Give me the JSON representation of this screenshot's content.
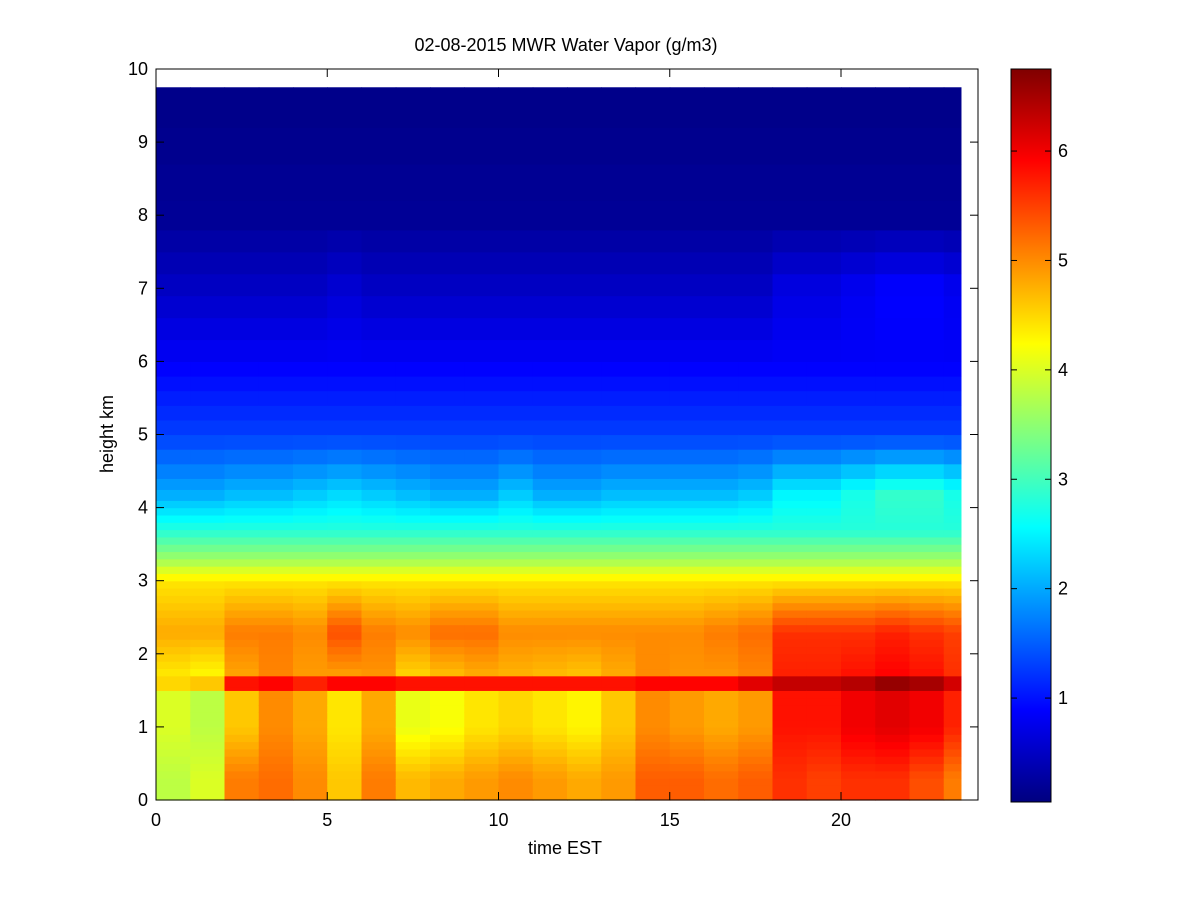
{
  "chart_data": {
    "type": "heatmap",
    "title": "02-08-2015 MWR Water Vapor (g/m3)",
    "xlabel": "time EST",
    "ylabel": "height km",
    "xlim": [
      0,
      24
    ],
    "ylim": [
      0,
      10
    ],
    "x_ticks": [
      0,
      5,
      10,
      15,
      20
    ],
    "y_ticks": [
      0,
      1,
      2,
      3,
      4,
      5,
      6,
      7,
      8,
      9,
      10
    ],
    "grid": false,
    "colormap": "jet",
    "colorbar": {
      "min": 0.05,
      "max": 6.75,
      "ticks": [
        1,
        2,
        3,
        4,
        5,
        6
      ]
    },
    "x": [
      0,
      1,
      2,
      3,
      4,
      5,
      6,
      7,
      8,
      9,
      10,
      11,
      12,
      13,
      14,
      15,
      16,
      17,
      18,
      19,
      20,
      21,
      22,
      23
    ],
    "x_end": 23.5,
    "y_top": 9.75,
    "height_levels": [
      0,
      0.1,
      0.2,
      0.3,
      0.4,
      0.5,
      0.6,
      0.7,
      0.8,
      0.9,
      1.0,
      1.1,
      1.2,
      1.3,
      1.4,
      1.5,
      1.55,
      1.65,
      1.7,
      1.8,
      1.9,
      2.0,
      2.1,
      2.2,
      2.3,
      2.4,
      2.5,
      2.6,
      2.7,
      2.8,
      2.9,
      3.0,
      3.1,
      3.2,
      3.3,
      3.4,
      3.5,
      3.6,
      3.7,
      3.8,
      3.9,
      4.0,
      4.1,
      4.25,
      4.4,
      4.6,
      4.8,
      5.0,
      5.2,
      5.4,
      5.6,
      5.8,
      6.0,
      6.3,
      6.6,
      6.9,
      7.2,
      7.5,
      7.8,
      8.2,
      8.7,
      9.2
    ],
    "profile_parameters": [
      {
        "t": 0,
        "surface": 3.8,
        "mid": 4.0,
        "peak": 4.5,
        "lid": 4.8,
        "upper": 2.0,
        "top": 0.5
      },
      {
        "t": 1,
        "surface": 4.0,
        "mid": 3.8,
        "peak": 4.6,
        "lid": 4.8,
        "upper": 2.0,
        "top": 0.5
      },
      {
        "t": 2,
        "surface": 5.1,
        "mid": 4.6,
        "peak": 5.8,
        "lid": 5.1,
        "upper": 2.1,
        "top": 0.5
      },
      {
        "t": 3,
        "surface": 5.2,
        "mid": 5.0,
        "peak": 5.9,
        "lid": 5.1,
        "upper": 2.1,
        "top": 0.5
      },
      {
        "t": 4,
        "surface": 5.0,
        "mid": 4.8,
        "peak": 5.7,
        "lid": 5.0,
        "upper": 2.2,
        "top": 0.5
      },
      {
        "t": 5,
        "surface": 4.6,
        "mid": 4.4,
        "peak": 5.9,
        "lid": 5.4,
        "upper": 2.3,
        "top": 0.6
      },
      {
        "t": 6,
        "surface": 5.1,
        "mid": 4.8,
        "peak": 5.9,
        "lid": 5.1,
        "upper": 2.2,
        "top": 0.5
      },
      {
        "t": 7,
        "surface": 4.7,
        "mid": 4.1,
        "peak": 5.8,
        "lid": 5.0,
        "upper": 2.1,
        "top": 0.5
      },
      {
        "t": 8,
        "surface": 4.8,
        "mid": 4.2,
        "peak": 5.8,
        "lid": 5.2,
        "upper": 2.0,
        "top": 0.5
      },
      {
        "t": 9,
        "surface": 4.9,
        "mid": 4.4,
        "peak": 5.8,
        "lid": 5.2,
        "upper": 2.0,
        "top": 0.5
      },
      {
        "t": 10,
        "surface": 5.0,
        "mid": 4.5,
        "peak": 5.8,
        "lid": 5.0,
        "upper": 2.2,
        "top": 0.5
      },
      {
        "t": 11,
        "surface": 4.9,
        "mid": 4.4,
        "peak": 5.8,
        "lid": 5.0,
        "upper": 2.0,
        "top": 0.5
      },
      {
        "t": 12,
        "surface": 4.8,
        "mid": 4.3,
        "peak": 5.8,
        "lid": 5.0,
        "upper": 2.0,
        "top": 0.5
      },
      {
        "t": 13,
        "surface": 4.9,
        "mid": 4.6,
        "peak": 5.8,
        "lid": 5.0,
        "upper": 2.1,
        "top": 0.5
      },
      {
        "t": 14,
        "surface": 5.3,
        "mid": 5.0,
        "peak": 5.9,
        "lid": 5.0,
        "upper": 2.1,
        "top": 0.5
      },
      {
        "t": 15,
        "surface": 5.3,
        "mid": 4.9,
        "peak": 5.9,
        "lid": 5.0,
        "upper": 2.1,
        "top": 0.5
      },
      {
        "t": 16,
        "surface": 5.2,
        "mid": 4.8,
        "peak": 5.9,
        "lid": 5.1,
        "upper": 2.1,
        "top": 0.5
      },
      {
        "t": 17,
        "surface": 5.3,
        "mid": 4.9,
        "peak": 6.1,
        "lid": 5.2,
        "upper": 2.2,
        "top": 0.5
      },
      {
        "t": 18,
        "surface": 5.6,
        "mid": 5.8,
        "peak": 6.3,
        "lid": 5.6,
        "upper": 2.5,
        "top": 0.7
      },
      {
        "t": 19,
        "surface": 5.5,
        "mid": 5.8,
        "peak": 6.3,
        "lid": 5.6,
        "upper": 2.5,
        "top": 0.7
      },
      {
        "t": 20,
        "surface": 5.6,
        "mid": 6.0,
        "peak": 6.4,
        "lid": 5.6,
        "upper": 2.7,
        "top": 0.8
      },
      {
        "t": 21,
        "surface": 5.6,
        "mid": 6.1,
        "peak": 6.6,
        "lid": 5.7,
        "upper": 2.9,
        "top": 0.9
      },
      {
        "t": 22,
        "surface": 5.4,
        "mid": 6.0,
        "peak": 6.5,
        "lid": 5.6,
        "upper": 2.9,
        "top": 0.9
      },
      {
        "t": 23,
        "surface": 5.1,
        "mid": 5.7,
        "peak": 6.2,
        "lid": 5.5,
        "upper": 2.7,
        "top": 0.8
      }
    ]
  }
}
